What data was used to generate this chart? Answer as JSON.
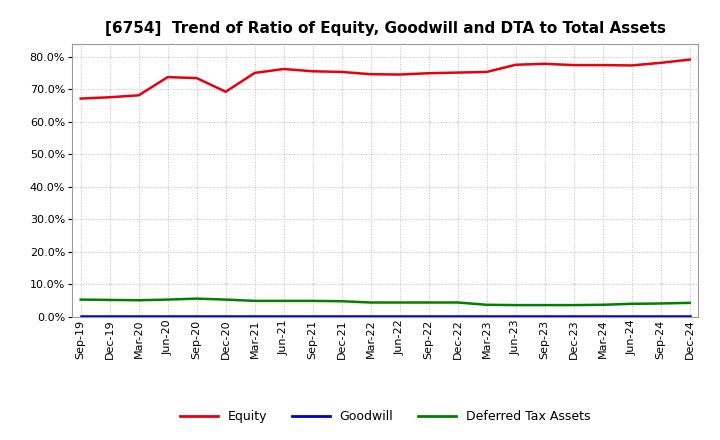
{
  "title": "[6754]  Trend of Ratio of Equity, Goodwill and DTA to Total Assets",
  "x_labels": [
    "Sep-19",
    "Dec-19",
    "Mar-20",
    "Jun-20",
    "Sep-20",
    "Dec-20",
    "Mar-21",
    "Jun-21",
    "Sep-21",
    "Dec-21",
    "Mar-22",
    "Jun-22",
    "Sep-22",
    "Dec-22",
    "Mar-23",
    "Jun-23",
    "Sep-23",
    "Dec-23",
    "Mar-24",
    "Jun-24",
    "Sep-24",
    "Dec-24"
  ],
  "equity": [
    0.672,
    0.676,
    0.682,
    0.738,
    0.735,
    0.693,
    0.751,
    0.763,
    0.756,
    0.754,
    0.747,
    0.746,
    0.75,
    0.752,
    0.754,
    0.776,
    0.779,
    0.775,
    0.775,
    0.774,
    0.782,
    0.792
  ],
  "goodwill": [
    0.001,
    0.001,
    0.001,
    0.001,
    0.001,
    0.001,
    0.001,
    0.001,
    0.001,
    0.001,
    0.001,
    0.001,
    0.001,
    0.001,
    0.001,
    0.001,
    0.001,
    0.001,
    0.001,
    0.001,
    0.001,
    0.001
  ],
  "dta": [
    0.053,
    0.052,
    0.051,
    0.053,
    0.056,
    0.053,
    0.049,
    0.049,
    0.049,
    0.048,
    0.044,
    0.044,
    0.044,
    0.044,
    0.037,
    0.036,
    0.036,
    0.036,
    0.037,
    0.04,
    0.041,
    0.043
  ],
  "equity_color": "#e8000d",
  "goodwill_color": "#0000cd",
  "dta_color": "#008000",
  "background_color": "#ffffff",
  "plot_bg_color": "#ffffff",
  "grid_color": "#bbbbbb",
  "ylim": [
    0.0,
    0.84
  ],
  "yticks": [
    0.0,
    0.1,
    0.2,
    0.3,
    0.4,
    0.5,
    0.6,
    0.7,
    0.8
  ],
  "legend_labels": [
    "Equity",
    "Goodwill",
    "Deferred Tax Assets"
  ],
  "title_fontsize": 11,
  "axis_fontsize": 8,
  "legend_fontsize": 9,
  "linewidth": 1.8
}
